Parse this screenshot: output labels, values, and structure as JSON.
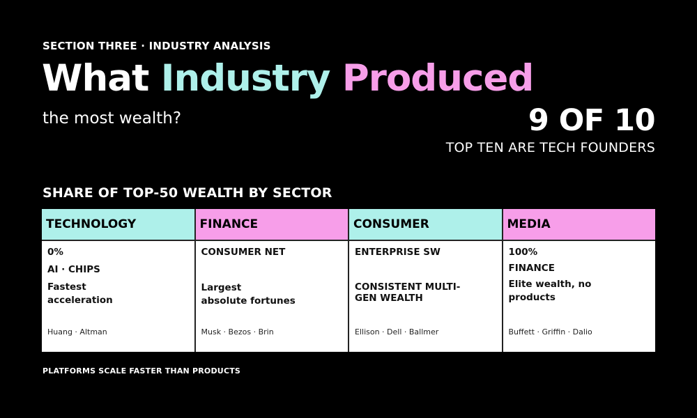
{
  "kicker": "SECTION THREE · INDUSTRY ANALYSIS",
  "headline": {
    "word1": "What",
    "word2": "Industry",
    "word3": "Produced",
    "colors": {
      "white": "#ffffff",
      "teal": "#aef0ea",
      "pink": "#f79ee9"
    }
  },
  "subhead": "the most wealth?",
  "stat": {
    "value": "9 OF 10",
    "label": "TOP TEN ARE TECH FOUNDERS"
  },
  "table_title": "SHARE OF TOP-50 WEALTH BY SECTOR",
  "columns": [
    {
      "header": "TECHNOLOGY",
      "color": "#aef0ea",
      "line1": "0%",
      "line2": "AI · CHIPS",
      "line3": "Fastest",
      "line4": "acceleration",
      "names": "Huang · Altman"
    },
    {
      "header": "FINANCE",
      "color": "#f79ee9",
      "line1": "CONSUMER NET",
      "line2": "Largest",
      "line3": "absolute fortunes",
      "names": "Musk · Bezos · Brin"
    },
    {
      "header": "CONSUMER",
      "color": "#aef0ea",
      "line1": "ENTERPRISE SW",
      "line2": "CONSISTENT MULTI-",
      "line3": "GEN WEALTH",
      "names": "Ellison · Dell · Ballmer"
    },
    {
      "header": "MEDIA",
      "color": "#f79ee9",
      "line1": "100%",
      "line2": "FINANCE",
      "line3": "Elite wealth, no",
      "line4": "products",
      "names": "Buffett · Griffin · Dalio"
    }
  ],
  "footer": "PLATFORMS SCALE FASTER THAN PRODUCTS"
}
